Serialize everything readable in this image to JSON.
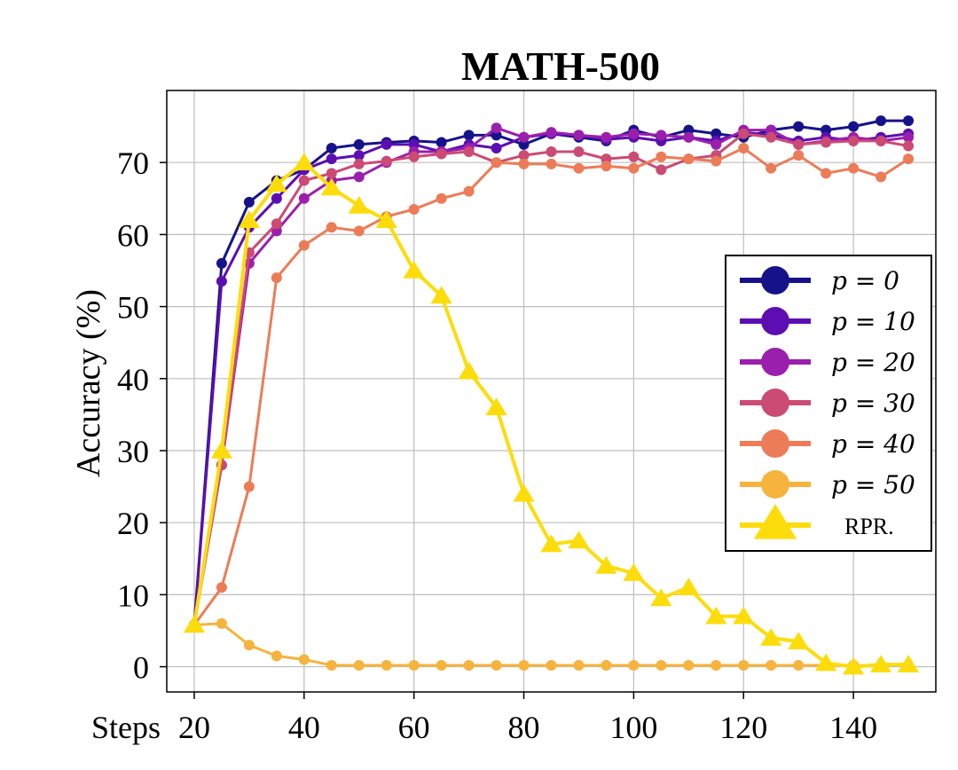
{
  "chart_data": {
    "type": "line",
    "title": "MATH-500",
    "xlabel": "Steps",
    "ylabel": "Accuracy (%)",
    "xlim": [
      15,
      155
    ],
    "ylim": [
      -3.5,
      80
    ],
    "x_ticks": [
      20,
      40,
      60,
      80,
      100,
      120,
      140
    ],
    "y_ticks": [
      0,
      10,
      20,
      30,
      40,
      50,
      60,
      70
    ],
    "grid": true,
    "legend_position": "right",
    "x": [
      20,
      25,
      30,
      35,
      40,
      45,
      50,
      55,
      60,
      65,
      70,
      75,
      80,
      85,
      90,
      95,
      100,
      105,
      110,
      115,
      120,
      125,
      130,
      135,
      140,
      145,
      150
    ],
    "series": [
      {
        "name": "p = 0",
        "color": "#16138a",
        "marker": "circle",
        "values": [
          5.8,
          56.0,
          64.5,
          67.5,
          69.0,
          72.0,
          72.5,
          72.8,
          73.0,
          72.8,
          73.8,
          73.8,
          72.5,
          74.0,
          73.5,
          73.0,
          74.5,
          73.5,
          74.5,
          74.0,
          73.5,
          74.5,
          75.0,
          74.5,
          75.0,
          75.8,
          75.8
        ]
      },
      {
        "name": "p = 10",
        "color": "#5d0eb2",
        "marker": "circle",
        "values": [
          5.8,
          53.5,
          61.0,
          65.0,
          69.0,
          70.5,
          71.0,
          72.5,
          72.5,
          71.5,
          72.5,
          72.0,
          73.5,
          74.0,
          73.8,
          73.2,
          73.5,
          73.0,
          73.5,
          73.0,
          74.2,
          73.8,
          73.0,
          73.5,
          73.0,
          73.5,
          74.0
        ]
      },
      {
        "name": "p = 20",
        "color": "#9b1fad",
        "marker": "circle",
        "values": [
          5.8,
          28.0,
          56.0,
          60.5,
          65.0,
          67.5,
          68.0,
          70.0,
          71.5,
          71.5,
          72.0,
          74.8,
          73.5,
          74.2,
          73.8,
          73.5,
          74.0,
          73.8,
          73.5,
          72.5,
          74.5,
          74.5,
          72.5,
          73.0,
          73.5,
          73.0,
          73.5
        ]
      },
      {
        "name": "p = 30",
        "color": "#cb4b74",
        "marker": "circle",
        "values": [
          5.8,
          28.0,
          57.5,
          61.5,
          67.5,
          68.5,
          69.8,
          70.2,
          70.8,
          71.2,
          71.5,
          70.0,
          71.0,
          71.5,
          71.5,
          70.5,
          70.8,
          69.0,
          70.5,
          71.0,
          74.0,
          73.5,
          72.5,
          72.8,
          73.0,
          73.0,
          72.3
        ]
      },
      {
        "name": "p = 40",
        "color": "#ec7c57",
        "marker": "circle",
        "values": [
          5.8,
          11.0,
          25.0,
          54.0,
          58.5,
          61.0,
          60.5,
          62.5,
          63.5,
          65.0,
          66.0,
          70.0,
          69.8,
          69.8,
          69.2,
          69.5,
          69.2,
          70.8,
          70.5,
          70.2,
          72.0,
          69.2,
          71.0,
          68.5,
          69.2,
          68.0,
          70.5
        ]
      },
      {
        "name": "p = 50",
        "color": "#f6b33d",
        "marker": "circle",
        "values": [
          5.8,
          6.0,
          3.0,
          1.5,
          1.0,
          0.2,
          0.2,
          0.2,
          0.2,
          0.2,
          0.2,
          0.2,
          0.2,
          0.2,
          0.2,
          0.2,
          0.2,
          0.2,
          0.2,
          0.2,
          0.2,
          0.2,
          0.2,
          0.2,
          0.2,
          0.2,
          0.2
        ]
      },
      {
        "name": "RPR.",
        "color": "#fddc0c",
        "marker": "triangle",
        "values": [
          5.8,
          30.0,
          62.0,
          67.0,
          70.0,
          66.5,
          64.0,
          62.0,
          55.0,
          51.5,
          41.0,
          36.0,
          24.0,
          17.0,
          17.5,
          14.0,
          13.0,
          9.5,
          11.0,
          7.0,
          7.0,
          4.0,
          3.5,
          0.5,
          0.0,
          0.3,
          0.3
        ]
      }
    ]
  }
}
